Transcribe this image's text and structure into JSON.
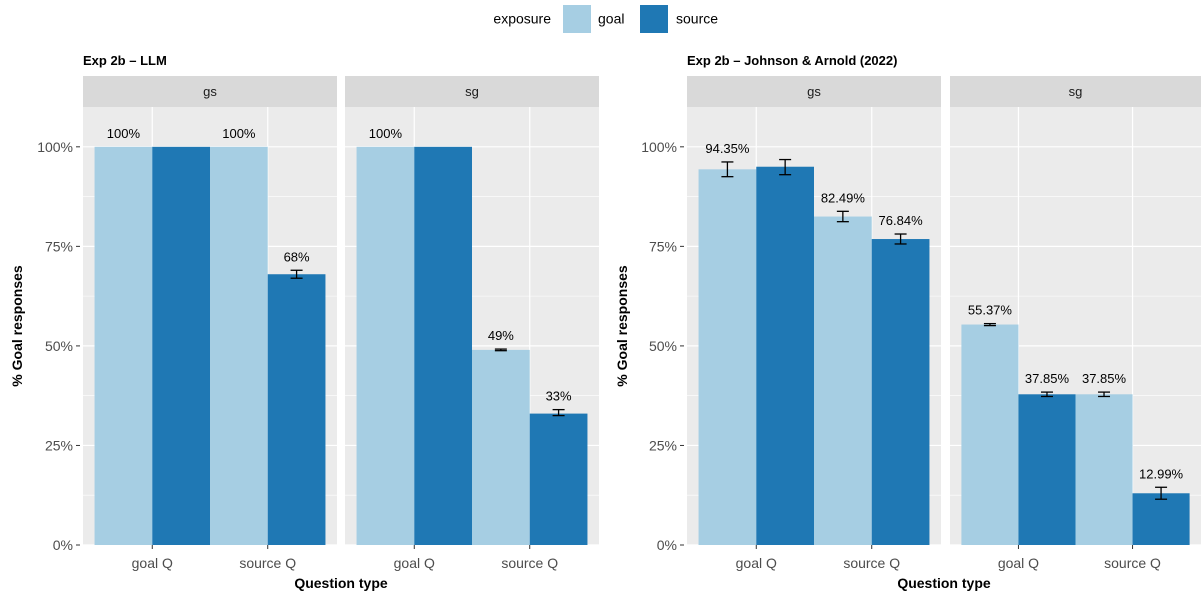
{
  "legend": {
    "title": "exposure",
    "items": [
      {
        "label": "goal",
        "color": "#A6CEE3"
      },
      {
        "label": "source",
        "color": "#1F78B4"
      }
    ],
    "placement": "top"
  },
  "chart_data": [
    {
      "type": "bar",
      "title": "Exp 2b – LLM",
      "xlabel": "Question type",
      "ylabel": "% Goal responses",
      "ylim": [
        0,
        1.1
      ],
      "yticks": [
        "0%",
        "25%",
        "50%",
        "75%",
        "100%"
      ],
      "categories": [
        "goal Q",
        "source Q"
      ],
      "series_names": [
        "goal",
        "source"
      ],
      "facets": [
        {
          "strip": "gs",
          "bars": [
            {
              "category": "goal Q",
              "series": "goal",
              "value": 1.0,
              "label": "100%",
              "err": null
            },
            {
              "category": "goal Q",
              "series": "source",
              "value": 1.0,
              "label": "",
              "err": null
            },
            {
              "category": "source Q",
              "series": "goal",
              "value": 1.0,
              "label": "100%",
              "err": null
            },
            {
              "category": "source Q",
              "series": "source",
              "value": 0.68,
              "label": "68%",
              "err": [
                0.67,
                0.69
              ]
            }
          ]
        },
        {
          "strip": "sg",
          "bars": [
            {
              "category": "goal Q",
              "series": "goal",
              "value": 1.0,
              "label": "100%",
              "err": null
            },
            {
              "category": "goal Q",
              "series": "source",
              "value": 1.0,
              "label": "",
              "err": null
            },
            {
              "category": "source Q",
              "series": "goal",
              "value": 0.49,
              "label": "49%",
              "err": [
                0.488,
                0.492
              ]
            },
            {
              "category": "source Q",
              "series": "source",
              "value": 0.33,
              "label": "33%",
              "err": [
                0.325,
                0.34
              ]
            }
          ]
        }
      ]
    },
    {
      "type": "bar",
      "title": "Exp 2b – Johnson & Arnold (2022)",
      "xlabel": "Question type",
      "ylabel": "% Goal responses",
      "ylim": [
        0,
        1.1
      ],
      "yticks": [
        "0%",
        "25%",
        "50%",
        "75%",
        "100%"
      ],
      "categories": [
        "goal Q",
        "source Q"
      ],
      "series_names": [
        "goal",
        "source"
      ],
      "facets": [
        {
          "strip": "gs",
          "bars": [
            {
              "category": "goal Q",
              "series": "goal",
              "value": 0.9435,
              "label": "94.35%",
              "err": [
                0.925,
                0.962
              ]
            },
            {
              "category": "goal Q",
              "series": "source",
              "value": 0.95,
              "label": "",
              "err": [
                0.93,
                0.968
              ]
            },
            {
              "category": "source Q",
              "series": "goal",
              "value": 0.8249,
              "label": "82.49%",
              "err": [
                0.812,
                0.838
              ]
            },
            {
              "category": "source Q",
              "series": "source",
              "value": 0.7684,
              "label": "76.84%",
              "err": [
                0.756,
                0.781
              ]
            }
          ]
        },
        {
          "strip": "sg",
          "bars": [
            {
              "category": "goal Q",
              "series": "goal",
              "value": 0.5537,
              "label": "55.37%",
              "err": [
                0.551,
                0.556
              ]
            },
            {
              "category": "goal Q",
              "series": "source",
              "value": 0.3785,
              "label": "37.85%",
              "err": [
                0.373,
                0.384
              ]
            },
            {
              "category": "source Q",
              "series": "goal",
              "value": 0.3785,
              "label": "37.85%",
              "err": [
                0.373,
                0.384
              ]
            },
            {
              "category": "source Q",
              "series": "source",
              "value": 0.1299,
              "label": "12.99%",
              "err": [
                0.115,
                0.145
              ]
            }
          ]
        }
      ]
    }
  ]
}
